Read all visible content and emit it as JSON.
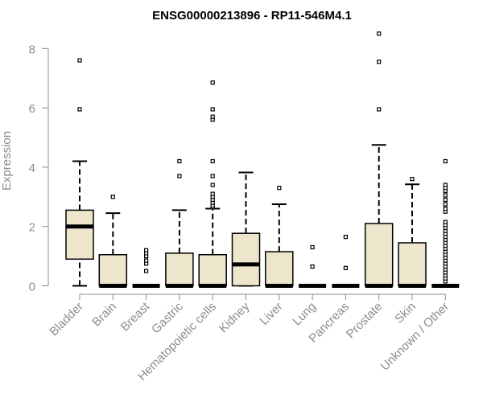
{
  "chart_data": {
    "type": "box",
    "title": "ENSG00000213896 - RP11-546M4.1",
    "xlabel": "",
    "ylabel": "Expression",
    "ylim": [
      0,
      8.6
    ],
    "yticks": [
      0,
      2,
      4,
      6,
      8
    ],
    "box_fill": "#ede6cc",
    "box_stroke": "#000000",
    "axis_color": "#8c8c8c",
    "categories": [
      "Bladder",
      "Brain",
      "Breast",
      "Gastric",
      "Hematopoietic cells",
      "Kidney",
      "Liver",
      "Lung",
      "Pancreas",
      "Prostate",
      "Skin",
      "Unknown / Other"
    ],
    "boxes": [
      {
        "category": "Bladder",
        "min": 0.0,
        "q1": 0.9,
        "median": 2.0,
        "q3": 2.55,
        "max": 4.2,
        "outliers": [
          5.95,
          7.6
        ]
      },
      {
        "category": "Brain",
        "min": 0.0,
        "q1": 0.0,
        "median": 0.0,
        "q3": 1.05,
        "max": 2.45,
        "outliers": [
          3.0
        ]
      },
      {
        "category": "Breast",
        "min": 0.0,
        "q1": 0.0,
        "median": 0.0,
        "q3": 0.0,
        "max": 0.0,
        "outliers": [
          0.5,
          0.75,
          0.85,
          1.0,
          1.1,
          1.2
        ]
      },
      {
        "category": "Gastric",
        "min": 0.0,
        "q1": 0.0,
        "median": 0.0,
        "q3": 1.1,
        "max": 2.55,
        "outliers": [
          3.7,
          4.2
        ]
      },
      {
        "category": "Hematopoietic cells",
        "min": 0.0,
        "q1": 0.0,
        "median": 0.0,
        "q3": 1.05,
        "max": 2.6,
        "outliers": [
          2.65,
          2.7,
          2.8,
          2.9,
          3.0,
          3.1,
          3.4,
          3.7,
          4.2,
          5.6,
          5.7,
          5.95,
          6.85
        ]
      },
      {
        "category": "Kidney",
        "min": 0.0,
        "q1": 0.0,
        "median": 0.72,
        "q3": 1.77,
        "max": 3.82,
        "outliers": []
      },
      {
        "category": "Liver",
        "min": 0.0,
        "q1": 0.0,
        "median": 0.0,
        "q3": 1.15,
        "max": 2.75,
        "outliers": [
          3.3
        ]
      },
      {
        "category": "Lung",
        "min": 0.0,
        "q1": 0.0,
        "median": 0.0,
        "q3": 0.0,
        "max": 0.0,
        "outliers": [
          0.65,
          1.3
        ]
      },
      {
        "category": "Pancreas",
        "min": 0.0,
        "q1": 0.0,
        "median": 0.0,
        "q3": 0.0,
        "max": 0.0,
        "outliers": [
          0.6,
          1.65
        ]
      },
      {
        "category": "Prostate",
        "min": 0.0,
        "q1": 0.0,
        "median": 0.0,
        "q3": 2.1,
        "max": 4.75,
        "outliers": [
          5.95,
          7.55,
          8.5
        ]
      },
      {
        "category": "Skin",
        "min": 0.0,
        "q1": 0.0,
        "median": 0.0,
        "q3": 1.45,
        "max": 3.42,
        "outliers": [
          3.6
        ]
      },
      {
        "category": "Unknown / Other",
        "min": 0.0,
        "q1": 0.0,
        "median": 0.0,
        "q3": 0.0,
        "max": 0.0,
        "outliers": [
          0.15,
          0.25,
          0.35,
          0.45,
          0.55,
          0.65,
          0.75,
          0.85,
          0.95,
          1.05,
          1.15,
          1.25,
          1.35,
          1.45,
          1.55,
          1.65,
          1.75,
          1.85,
          1.95,
          2.05,
          2.15,
          2.5,
          2.6,
          2.75,
          2.9,
          3.05,
          3.2,
          3.3,
          3.4,
          4.2
        ]
      }
    ]
  }
}
